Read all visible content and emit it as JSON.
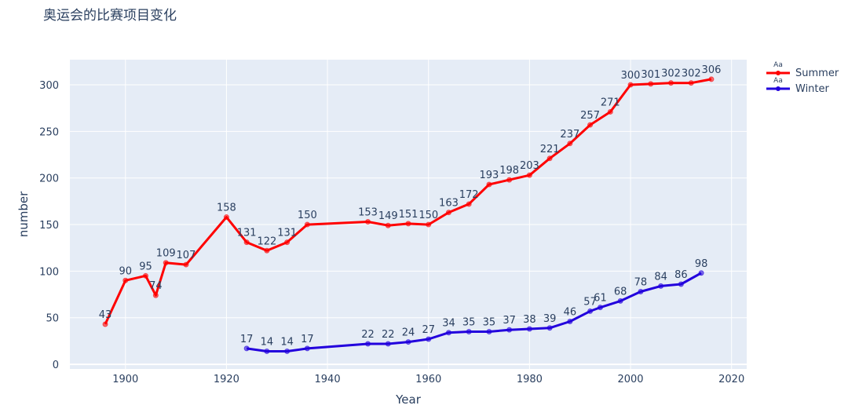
{
  "chart_data": {
    "type": "line",
    "title": "奥运会的比赛项目变化",
    "xlabel": "Year",
    "ylabel": "number",
    "xlim": [
      1889,
      2023
    ],
    "ylim": [
      -5,
      327
    ],
    "x_ticks": [
      1900,
      1920,
      1940,
      1960,
      1980,
      2000,
      2020
    ],
    "y_ticks": [
      0,
      50,
      100,
      150,
      200,
      250,
      300
    ],
    "legend_position": "top-right",
    "legend_symbol": "Aa",
    "series": [
      {
        "name": "Summer",
        "color": "#ff0000",
        "x": [
          1896,
          1900,
          1904,
          1906,
          1908,
          1912,
          1920,
          1924,
          1928,
          1932,
          1936,
          1948,
          1952,
          1956,
          1960,
          1964,
          1968,
          1972,
          1976,
          1980,
          1984,
          1988,
          1992,
          1996,
          2000,
          2004,
          2008,
          2012,
          2016
        ],
        "y": [
          43,
          90,
          95,
          74,
          109,
          107,
          158,
          131,
          122,
          131,
          150,
          153,
          149,
          151,
          150,
          163,
          172,
          193,
          198,
          203,
          221,
          237,
          257,
          271,
          300,
          301,
          302,
          302,
          306
        ]
      },
      {
        "name": "Winter",
        "color": "#2200dd",
        "x": [
          1924,
          1928,
          1932,
          1936,
          1948,
          1952,
          1956,
          1960,
          1964,
          1968,
          1972,
          1976,
          1980,
          1984,
          1988,
          1992,
          1994,
          1998,
          2002,
          2006,
          2010,
          2014
        ],
        "y": [
          17,
          14,
          14,
          17,
          22,
          22,
          24,
          27,
          34,
          35,
          35,
          37,
          38,
          39,
          46,
          57,
          61,
          68,
          78,
          84,
          86,
          98
        ]
      }
    ]
  }
}
